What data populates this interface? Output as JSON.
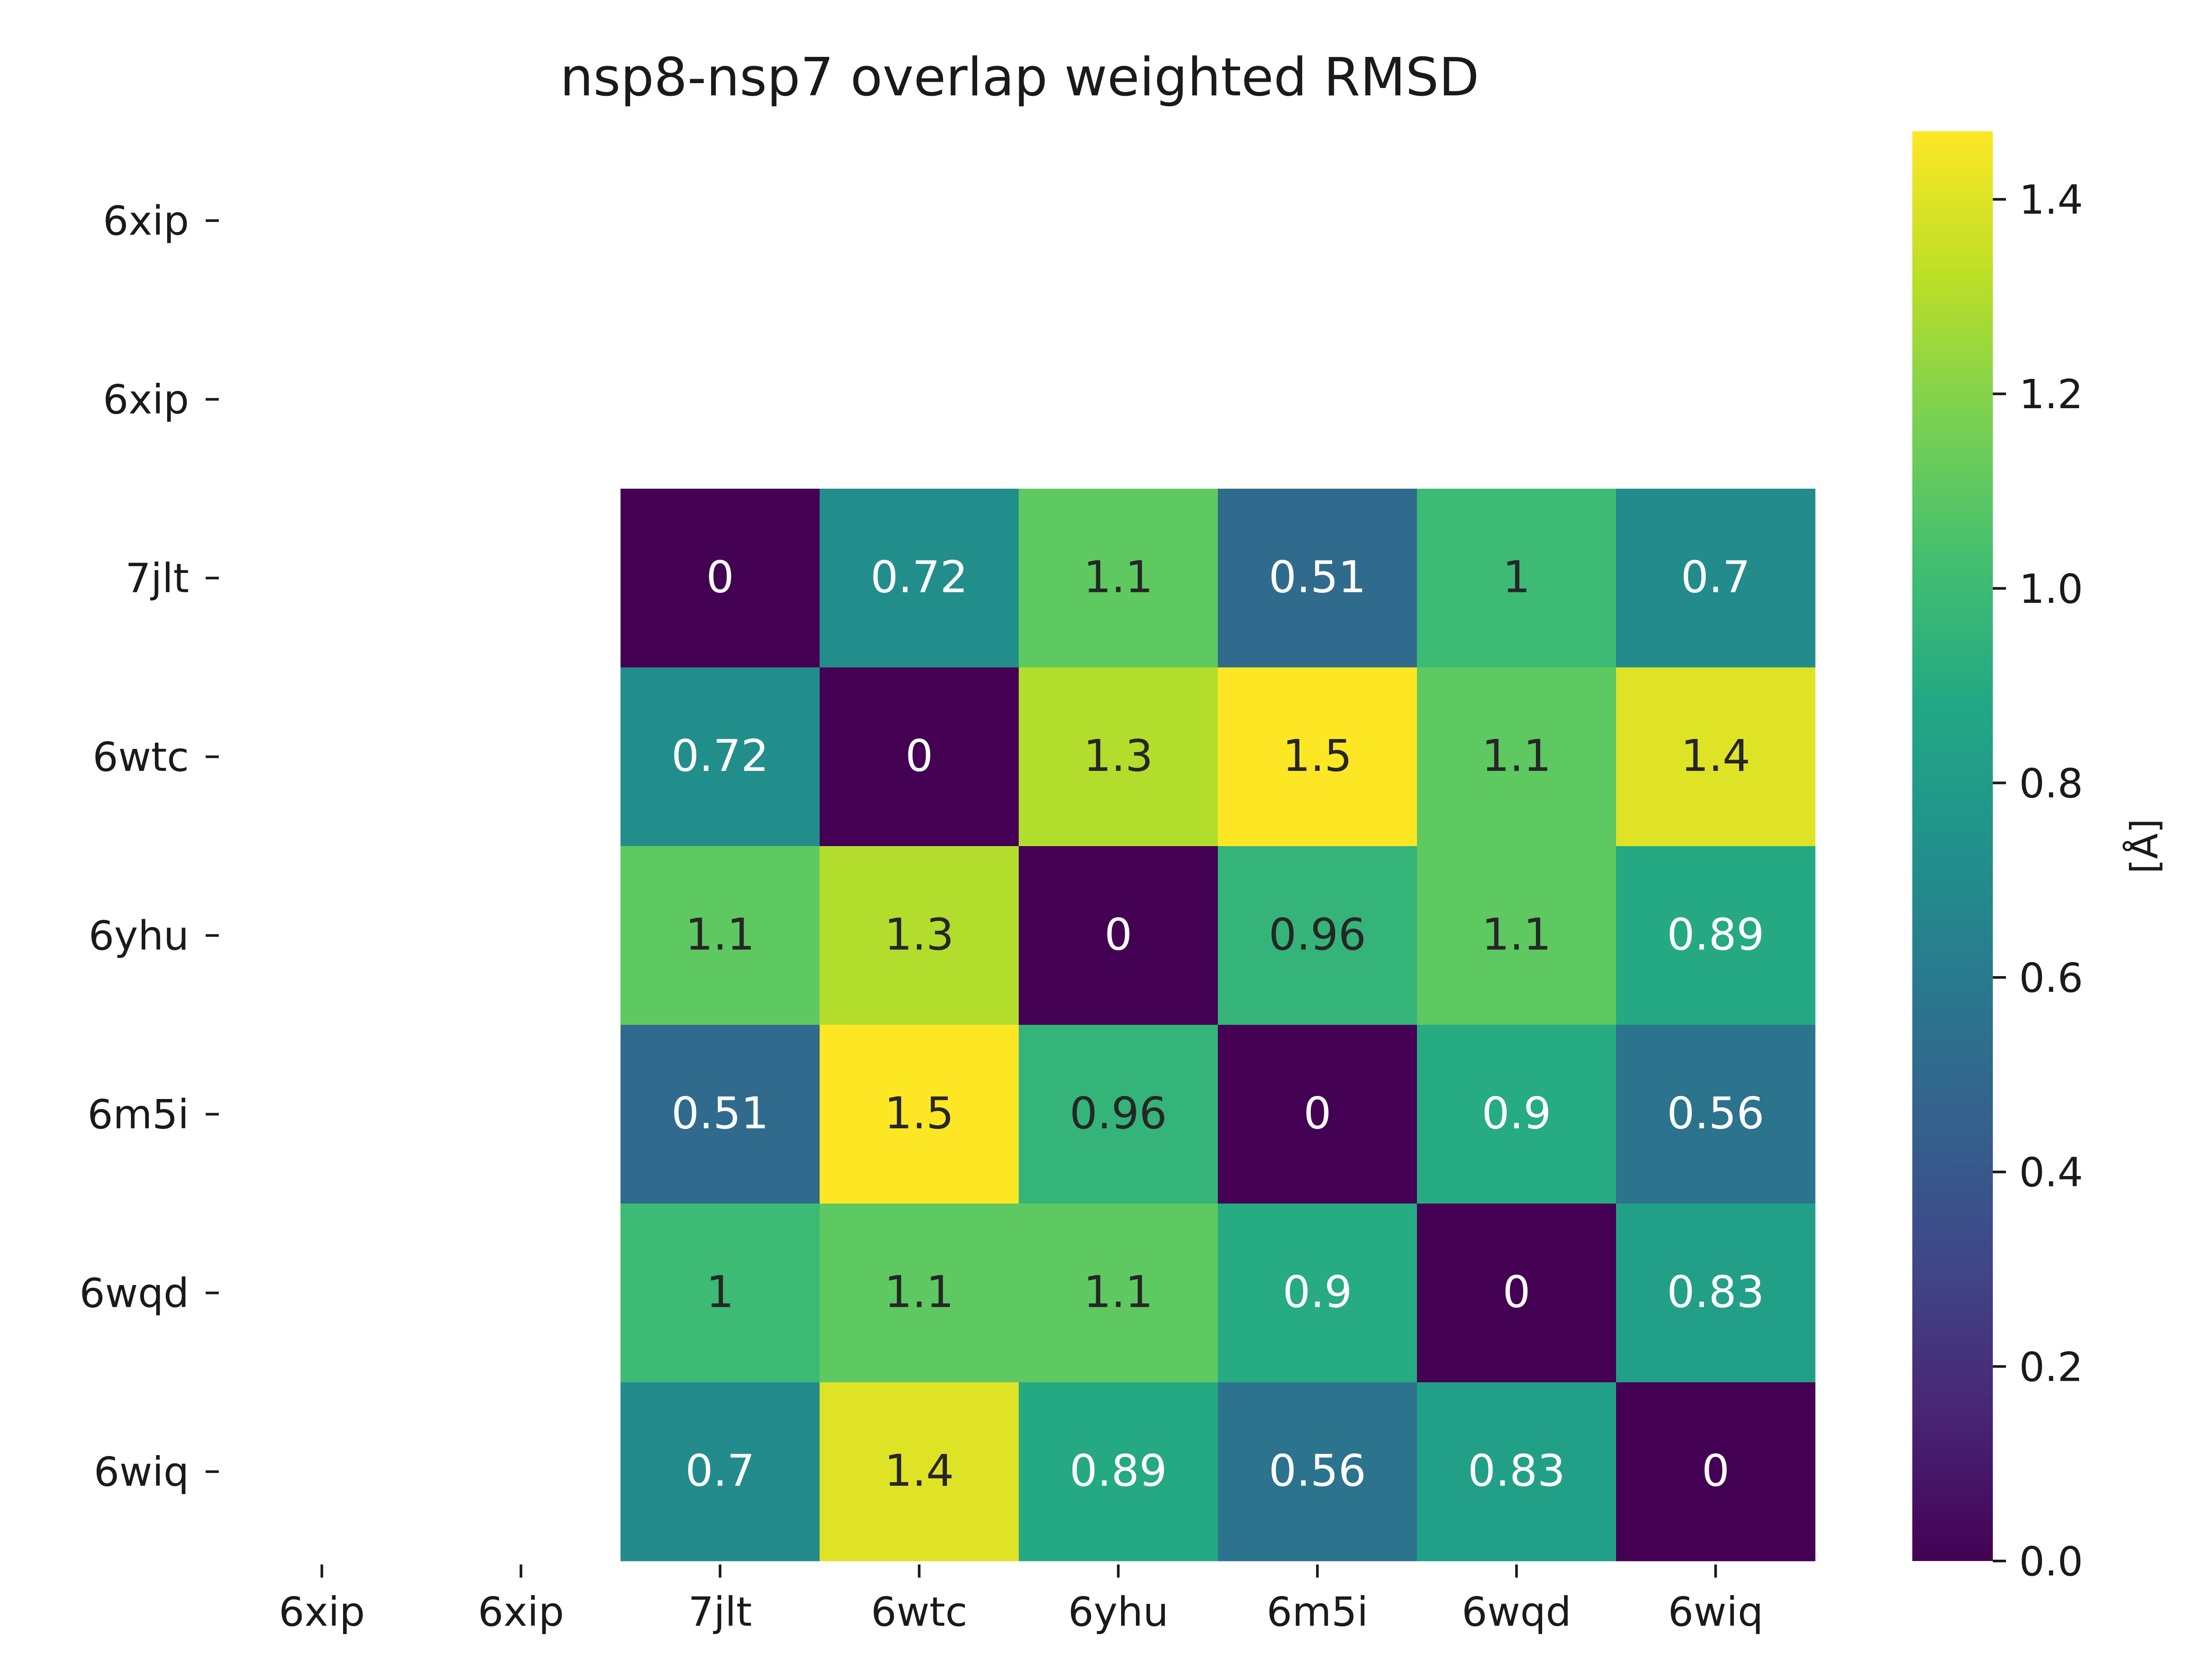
{
  "chart_data": {
    "type": "heatmap",
    "title": "nsp8-nsp7 overlap weighted RMSD",
    "x_labels": [
      "6xip",
      "6xip",
      "7jlt",
      "6wtc",
      "6yhu",
      "6m5i",
      "6wqd",
      "6wiq"
    ],
    "y_labels": [
      "6xip",
      "6xip",
      "7jlt",
      "6wtc",
      "6yhu",
      "6m5i",
      "6wqd",
      "6wiq"
    ],
    "values": [
      [
        null,
        null,
        null,
        null,
        null,
        null,
        null,
        null
      ],
      [
        null,
        null,
        null,
        null,
        null,
        null,
        null,
        null
      ],
      [
        null,
        null,
        0,
        0.72,
        1.1,
        0.51,
        1,
        0.7
      ],
      [
        null,
        null,
        0.72,
        0,
        1.3,
        1.5,
        1.1,
        1.4
      ],
      [
        null,
        null,
        1.1,
        1.3,
        0,
        0.96,
        1.1,
        0.89
      ],
      [
        null,
        null,
        0.51,
        1.5,
        0.96,
        0,
        0.9,
        0.56
      ],
      [
        null,
        null,
        1,
        1.1,
        1.1,
        0.9,
        0,
        0.83
      ],
      [
        null,
        null,
        0.7,
        1.4,
        0.89,
        0.56,
        0.83,
        0
      ]
    ],
    "annotations": [
      [
        null,
        null,
        null,
        null,
        null,
        null,
        null,
        null
      ],
      [
        null,
        null,
        null,
        null,
        null,
        null,
        null,
        null
      ],
      [
        null,
        null,
        "0",
        "0.72",
        "1.1",
        "0.51",
        "1",
        "0.7"
      ],
      [
        null,
        null,
        "0.72",
        "0",
        "1.3",
        "1.5",
        "1.1",
        "1.4"
      ],
      [
        null,
        null,
        "1.1",
        "1.3",
        "0",
        "0.96",
        "1.1",
        "0.89"
      ],
      [
        null,
        null,
        "0.51",
        "1.5",
        "0.96",
        "0",
        "0.9",
        "0.56"
      ],
      [
        null,
        null,
        "1",
        "1.1",
        "1.1",
        "0.9",
        "0",
        "0.83"
      ],
      [
        null,
        null,
        "0.7",
        "1.4",
        "0.89",
        "0.56",
        "0.83",
        "0"
      ]
    ],
    "colormap": "viridis",
    "vmin": 0,
    "vmax": 1.47,
    "colorbar": {
      "label": "[Å]",
      "ticks": [
        0.0,
        0.2,
        0.4,
        0.6,
        0.8,
        1.0,
        1.2,
        1.4
      ],
      "tick_labels": [
        "0.0",
        "0.2",
        "0.4",
        "0.6",
        "0.8",
        "1.0",
        "1.2",
        "1.4"
      ]
    }
  }
}
